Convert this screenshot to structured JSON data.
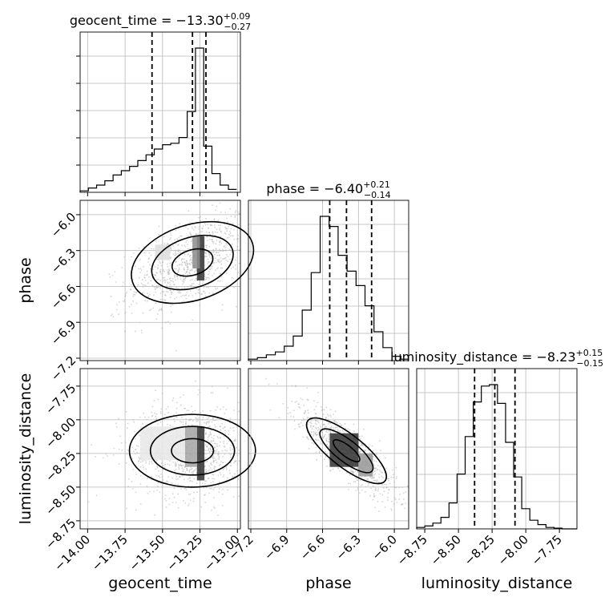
{
  "chart_data": {
    "type": "corner",
    "parameters": [
      "geocent_time",
      "phase",
      "luminosity_distance"
    ],
    "ranges": {
      "geocent_time": [
        -14.05,
        -12.98
      ],
      "phase": [
        -7.22,
        -5.88
      ],
      "luminosity_distance": [
        -8.81,
        -7.62
      ]
    },
    "titles": [
      {
        "param": "geocent_time",
        "prefix": "geocent_time = ",
        "value": "−13.30",
        "plus": "+0.09",
        "minus": "−0.27"
      },
      {
        "param": "phase",
        "prefix": "phase = ",
        "value": "−6.40",
        "plus": "+0.21",
        "minus": "−0.14"
      },
      {
        "param": "luminosity_distance",
        "prefix": "luminosity_distance = ",
        "value": "−8.23",
        "plus": "+0.15",
        "minus": "−0.15"
      }
    ],
    "quantiles": {
      "geocent_time": [
        -13.57,
        -13.3,
        -13.21
      ],
      "phase": [
        -6.54,
        -6.4,
        -6.19
      ],
      "luminosity_distance": [
        -8.38,
        -8.23,
        -8.08
      ]
    },
    "hist_1d": {
      "geocent_time": {
        "bins": [
          -14.05,
          -13.995,
          -13.94,
          -13.885,
          -13.83,
          -13.775,
          -13.72,
          -13.665,
          -13.61,
          -13.555,
          -13.5,
          -13.445,
          -13.39,
          -13.335,
          -13.28,
          -13.225,
          -13.17,
          -13.115,
          -13.06,
          -13.005
        ],
        "counts": [
          0.01,
          0.03,
          0.05,
          0.08,
          0.12,
          0.15,
          0.18,
          0.22,
          0.26,
          0.3,
          0.33,
          0.34,
          0.38,
          0.56,
          1.0,
          0.32,
          0.13,
          0.05,
          0.02
        ]
      },
      "phase": {
        "bins": [
          -7.22,
          -7.145,
          -7.07,
          -6.995,
          -6.92,
          -6.845,
          -6.77,
          -6.695,
          -6.62,
          -6.545,
          -6.47,
          -6.395,
          -6.32,
          -6.245,
          -6.17,
          -6.095,
          -6.02,
          -5.945,
          -5.88
        ],
        "counts": [
          0.01,
          0.02,
          0.04,
          0.06,
          0.1,
          0.17,
          0.35,
          0.61,
          1.0,
          0.93,
          0.73,
          0.62,
          0.52,
          0.38,
          0.2,
          0.09,
          0.03,
          0.01
        ]
      },
      "luminosity_distance": {
        "bins": [
          -8.81,
          -8.75,
          -8.69,
          -8.63,
          -8.57,
          -8.51,
          -8.45,
          -8.39,
          -8.33,
          -8.27,
          -8.21,
          -8.15,
          -8.09,
          -8.03,
          -7.97,
          -7.91,
          -7.85,
          -7.79,
          -7.73,
          -7.62
        ],
        "counts": [
          0.01,
          0.02,
          0.04,
          0.08,
          0.18,
          0.38,
          0.64,
          0.88,
          0.99,
          1.0,
          0.87,
          0.6,
          0.36,
          0.14,
          0.06,
          0.03,
          0.01,
          0.005,
          0.0
        ]
      }
    },
    "panels_2d": [
      {
        "x": "geocent_time",
        "y": "phase",
        "density_blocks": [
          {
            "x": [
              -13.27,
              -13.22
            ],
            "y": [
              -6.18,
              -6.55
            ],
            "level": 0.9
          },
          {
            "x": [
              -13.3,
              -13.25
            ],
            "y": [
              -6.18,
              -6.45
            ],
            "level": 0.5
          },
          {
            "x": [
              -13.55,
              -13.45
            ],
            "y": [
              -6.25,
              -6.38
            ],
            "level": 0.15
          }
        ]
      },
      {
        "x": "geocent_time",
        "y": "luminosity_distance",
        "density_blocks": [
          {
            "x": [
              -13.27,
              -13.22
            ],
            "y": [
              -8.05,
              -8.45
            ],
            "level": 0.9
          },
          {
            "x": [
              -13.35,
              -13.27
            ],
            "y": [
              -8.05,
              -8.35
            ],
            "level": 0.4
          },
          {
            "x": [
              -13.65,
              -13.35
            ],
            "y": [
              -8.05,
              -8.3
            ],
            "level": 0.1
          }
        ]
      },
      {
        "x": "phase",
        "y": "luminosity_distance",
        "density_blocks": [
          {
            "x": [
              -6.54,
              -6.3
            ],
            "y": [
              -8.1,
              -8.35
            ],
            "level": 0.9
          },
          {
            "x": [
              -6.3,
              -6.18
            ],
            "y": [
              -8.25,
              -8.42
            ],
            "level": 0.45
          }
        ]
      }
    ],
    "ticks": {
      "geocent_time": [
        -14.0,
        -13.75,
        -13.5,
        -13.25,
        -13.0
      ],
      "phase": [
        -7.2,
        -6.9,
        -6.6,
        -6.3,
        -6.0
      ],
      "luminosity_distance": [
        -8.75,
        -8.5,
        -8.25,
        -8.0,
        -7.75
      ]
    },
    "tick_labels": {
      "geocent_time": [
        "−14.00",
        "−13.75",
        "−13.50",
        "−13.25",
        "−13.00"
      ],
      "phase": [
        "−7.2",
        "−6.9",
        "−6.6",
        "−6.3",
        "−6.0"
      ],
      "luminosity_distance": [
        "−8.75",
        "−8.50",
        "−8.25",
        "−8.00",
        "−7.75"
      ]
    },
    "axis_labels": {
      "geocent_time": "geocent_time",
      "phase": "phase",
      "luminosity_distance": "luminosity_distance"
    },
    "grid": true,
    "colors": {
      "line": "#000000",
      "scatter": "#b0b0b0",
      "grid": "#b8b8b8"
    }
  }
}
